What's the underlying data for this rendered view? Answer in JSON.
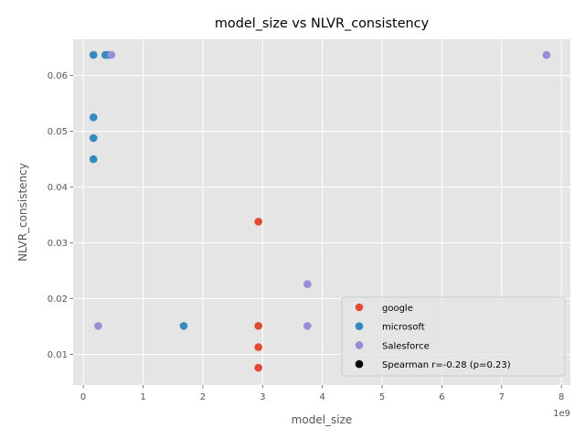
{
  "chart_data": {
    "type": "scatter",
    "title": "model_size vs NLVR_consistency",
    "xlabel": "model_size",
    "ylabel": "NLVR_consistency",
    "x_offset_text": "1e9",
    "xlim": [
      -0.17,
      8.15
    ],
    "ylim": [
      0.0045,
      0.0665
    ],
    "x_ticks": [
      0,
      1,
      2,
      3,
      4,
      5,
      6,
      7,
      8
    ],
    "x_tick_labels": [
      "0",
      "1",
      "2",
      "3",
      "4",
      "5",
      "6",
      "7",
      "8"
    ],
    "y_ticks": [
      0.01,
      0.02,
      0.03,
      0.04,
      0.05,
      0.06
    ],
    "y_tick_labels": [
      "0.01",
      "0.02",
      "0.03",
      "0.04",
      "0.05",
      "0.06"
    ],
    "grid": true,
    "legend_position": "lower-right",
    "series": [
      {
        "name": "google",
        "color": "#E24A33",
        "points": [
          {
            "x": 2.93,
            "y": 0.0338
          },
          {
            "x": 2.93,
            "y": 0.0151
          },
          {
            "x": 2.93,
            "y": 0.0113
          },
          {
            "x": 2.93,
            "y": 0.0076
          }
        ]
      },
      {
        "name": "microsoft",
        "color": "#348ABD",
        "points": [
          {
            "x": 0.17,
            "y": 0.0637
          },
          {
            "x": 0.37,
            "y": 0.0637
          },
          {
            "x": 0.42,
            "y": 0.0637
          },
          {
            "x": 0.17,
            "y": 0.0525
          },
          {
            "x": 0.17,
            "y": 0.0488
          },
          {
            "x": 0.17,
            "y": 0.045
          },
          {
            "x": 1.68,
            "y": 0.0151
          }
        ]
      },
      {
        "name": "Salesforce",
        "color": "#988ED5",
        "points": [
          {
            "x": 0.47,
            "y": 0.0637
          },
          {
            "x": 7.75,
            "y": 0.0637
          },
          {
            "x": 3.75,
            "y": 0.0226
          },
          {
            "x": 3.75,
            "y": 0.0151
          },
          {
            "x": 0.25,
            "y": 0.0151
          }
        ]
      }
    ],
    "legend_entries": [
      {
        "label": "google",
        "color": "#E24A33"
      },
      {
        "label": "microsoft",
        "color": "#348ABD"
      },
      {
        "label": "Salesforce",
        "color": "#988ED5"
      },
      {
        "label": "Spearman r=-0.28 (p=0.23)",
        "color": "#000000"
      }
    ]
  }
}
